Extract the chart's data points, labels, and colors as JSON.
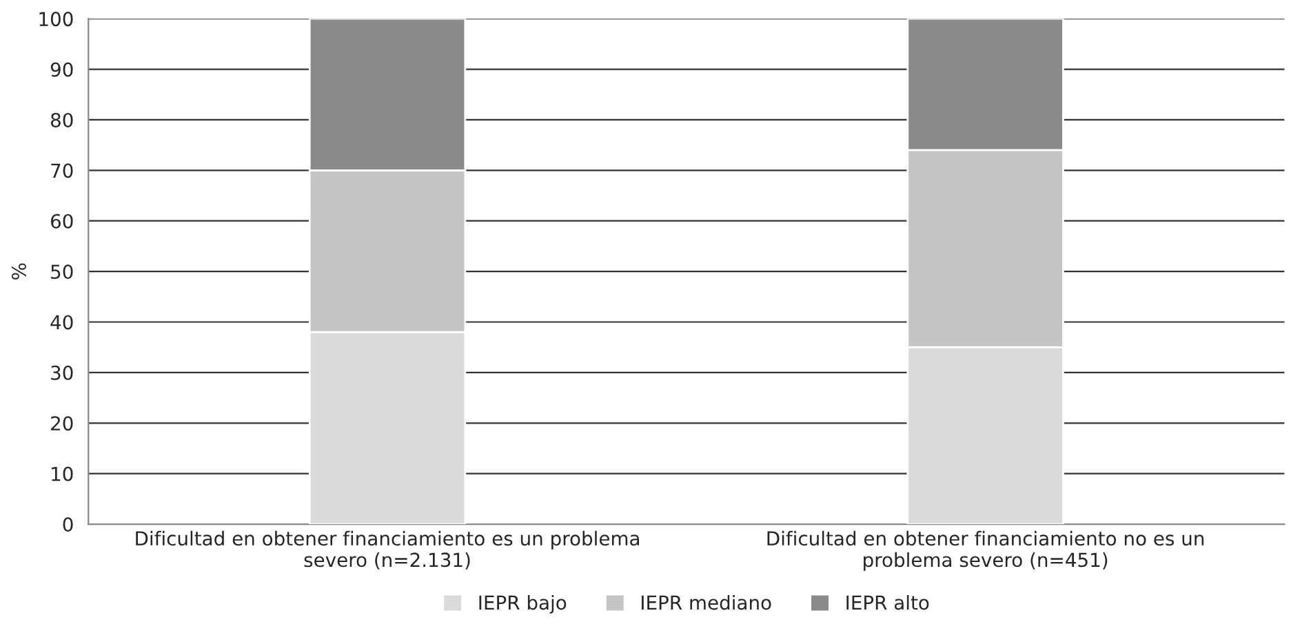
{
  "chart_data": {
    "type": "bar",
    "stacked": true,
    "ylabel": "%",
    "categories": [
      "Dificultad en obtener financiamiento es un problema severo (n=2.131)",
      "Dificultad en obtener financiamiento no es un problema severo (n=451)"
    ],
    "series": [
      {
        "name": "IEPR bajo",
        "color": "#dadada",
        "values": [
          38,
          35
        ]
      },
      {
        "name": "IEPR mediano",
        "color": "#c4c4c4",
        "values": [
          32,
          39
        ]
      },
      {
        "name": "IEPR alto",
        "color": "#8a8a8a",
        "values": [
          30,
          26
        ]
      }
    ],
    "ylim": [
      0,
      100
    ],
    "yticks": [
      0,
      10,
      20,
      30,
      40,
      50,
      60,
      70,
      80,
      90,
      100
    ],
    "grid": "y",
    "legend": "bottom"
  }
}
